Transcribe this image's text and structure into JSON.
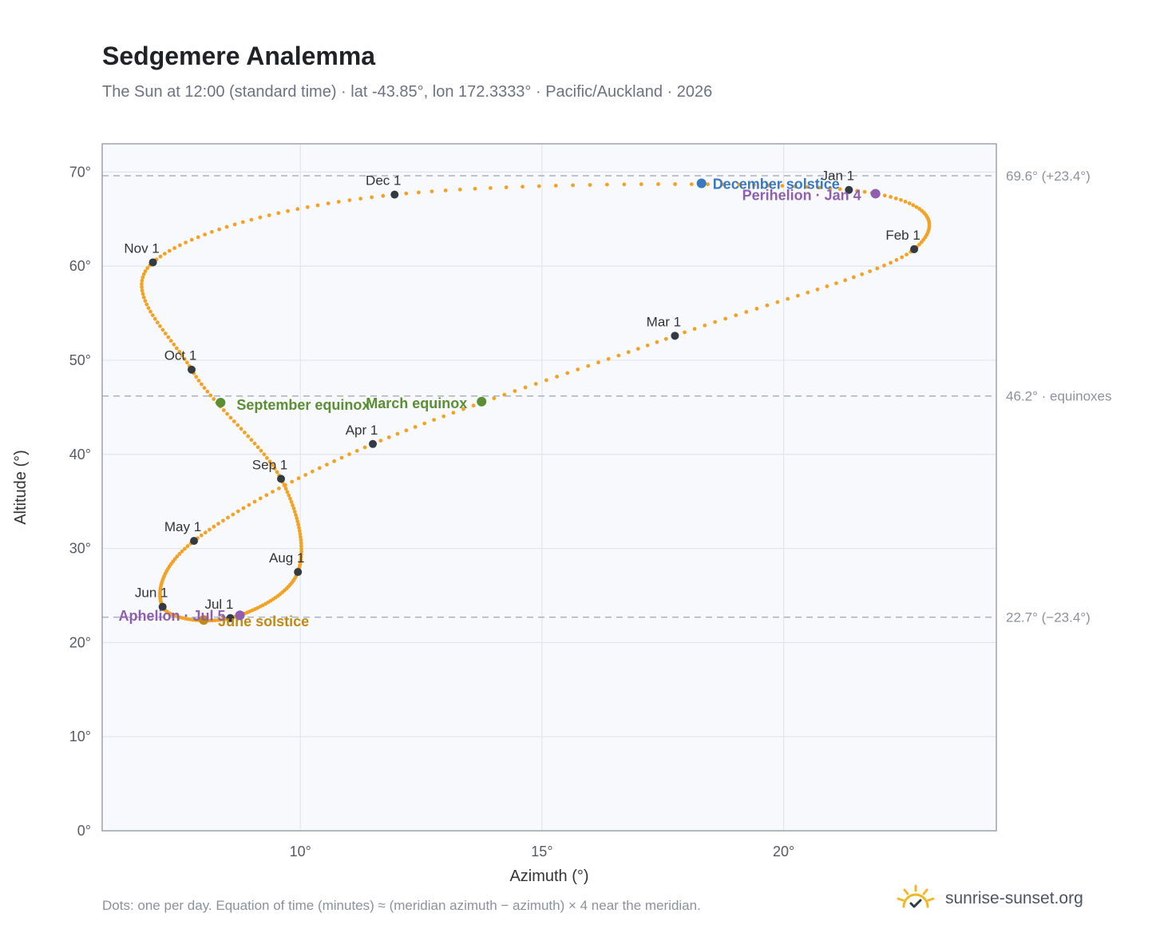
{
  "header": {
    "title": "Sedgemere Analemma",
    "subtitle": "The Sun at 12:00 (standard time) · lat -43.85°, lon 172.3333° · Pacific/Auckland · 2026"
  },
  "footer": {
    "note": "Dots: one per day. Equation of time (minutes) ≈ (meridian azimuth − azimuth) × 4 near the meridian.",
    "brand": "sunrise-sunset.org"
  },
  "colors": {
    "path": "#f2a325",
    "month_marker": "#333a42",
    "solstice_december": "#3a78c2",
    "solstice_june": "#c28a10",
    "equinox": "#5a8f32",
    "apsis": "#8e5fb0",
    "plot_bg": "#f7f9fc",
    "grid": "#e1e6ec",
    "frame": "#9aa4b2"
  },
  "chart_data": {
    "type": "scatter",
    "xlabel": "Azimuth (°)",
    "ylabel": "Altitude (°)",
    "xlim": [
      5.9,
      24.4
    ],
    "ylim": [
      0,
      73
    ],
    "x_ticks": [
      {
        "value": 10,
        "label": "10°"
      },
      {
        "value": 15,
        "label": "15°"
      },
      {
        "value": 20,
        "label": "20°"
      }
    ],
    "y_ticks": [
      {
        "value": 0,
        "label": "0°"
      },
      {
        "value": 10,
        "label": "10°"
      },
      {
        "value": 20,
        "label": "20°"
      },
      {
        "value": 30,
        "label": "30°"
      },
      {
        "value": 40,
        "label": "40°"
      },
      {
        "value": 50,
        "label": "50°"
      },
      {
        "value": 60,
        "label": "60°"
      },
      {
        "value": 70,
        "label": "70°"
      }
    ],
    "grid": true,
    "reference_lines": [
      {
        "altitude": 69.6,
        "label": "69.6° (+23.4°)"
      },
      {
        "altitude": 46.2,
        "label": "46.2° · equinoxes"
      },
      {
        "altitude": 22.7,
        "label": "22.7° (−23.4°)"
      }
    ],
    "month_markers": [
      {
        "label": "Jan 1",
        "azimuth": 21.35,
        "altitude": 68.1
      },
      {
        "label": "Feb 1",
        "azimuth": 22.7,
        "altitude": 61.8
      },
      {
        "label": "Mar 1",
        "azimuth": 17.75,
        "altitude": 52.6
      },
      {
        "label": "Apr 1",
        "azimuth": 11.5,
        "altitude": 41.1
      },
      {
        "label": "May 1",
        "azimuth": 7.8,
        "altitude": 30.8
      },
      {
        "label": "Jun 1",
        "azimuth": 7.15,
        "altitude": 23.8
      },
      {
        "label": "Jul 1",
        "azimuth": 8.55,
        "altitude": 22.6
      },
      {
        "label": "Aug 1",
        "azimuth": 9.95,
        "altitude": 27.5
      },
      {
        "label": "Sep 1",
        "azimuth": 9.6,
        "altitude": 37.4
      },
      {
        "label": "Oct 1",
        "azimuth": 7.75,
        "altitude": 49.0
      },
      {
        "label": "Nov 1",
        "azimuth": 6.95,
        "altitude": 60.4
      },
      {
        "label": "Dec 1",
        "azimuth": 11.95,
        "altitude": 67.6
      }
    ],
    "events": [
      {
        "label": "December solstice",
        "kind": "solstice_december",
        "azimuth": 18.3,
        "altitude": 68.8
      },
      {
        "label": "Perihelion · Jan 4",
        "kind": "apsis",
        "azimuth": 21.9,
        "altitude": 67.7
      },
      {
        "label": "March equinox",
        "kind": "equinox",
        "azimuth": 13.75,
        "altitude": 45.6
      },
      {
        "label": "September equinox",
        "kind": "equinox",
        "azimuth": 8.35,
        "altitude": 45.5
      },
      {
        "label": "June solstice",
        "kind": "solstice_june",
        "azimuth": 8.0,
        "altitude": 22.4
      },
      {
        "label": "Aphelion · Jul 5",
        "kind": "apsis",
        "azimuth": 8.75,
        "altitude": 22.9
      }
    ]
  }
}
